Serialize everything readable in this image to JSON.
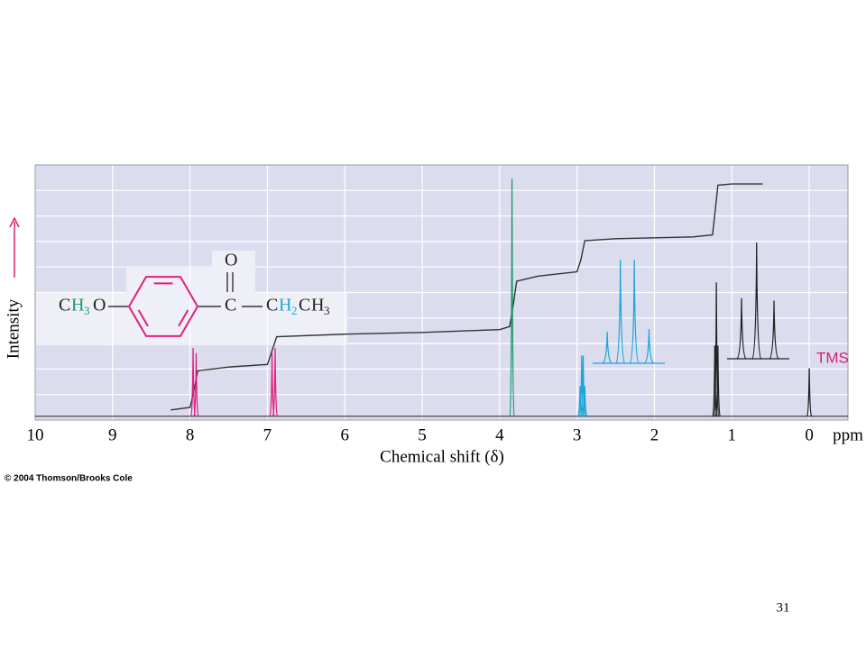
{
  "chart_data": {
    "type": "nmr",
    "x_label": "Chemical shift (δ)",
    "x_unit": "ppm",
    "y_label": "Intensity",
    "xlim": [
      10,
      -0.5
    ],
    "xticks": [
      10,
      9,
      8,
      7,
      6,
      5,
      4,
      3,
      2,
      1,
      0
    ],
    "ylim": [
      -1.5,
      99.5
    ],
    "grid": true,
    "background": "#dcdcef",
    "annotation": {
      "text": "TMS",
      "color": "#d6206f"
    },
    "series": [
      {
        "color": "#e0207f",
        "x": [
          7.96,
          7.92,
          6.94,
          6.9
        ],
        "values": [
          27,
          25,
          25,
          27
        ]
      },
      {
        "color": "#1a9a6a",
        "x": [
          3.84
        ],
        "values": [
          94
        ]
      },
      {
        "color": "#1aa6d8",
        "x": [
          2.96,
          2.94,
          2.92,
          2.9
        ],
        "values": [
          12,
          24,
          24,
          12
        ]
      },
      {
        "color": "#222222",
        "x": [
          1.22,
          1.2,
          1.18,
          0
        ],
        "values": [
          28,
          53,
          28,
          19
        ]
      }
    ],
    "insets": [
      {
        "color": "#1aa6d8",
        "x": [
          2.61,
          2.44,
          2.26,
          2.07
        ],
        "values": [
          12.4,
          41,
          41,
          13.5
        ]
      },
      {
        "color": "#222222",
        "x": [
          0.875,
          0.68,
          0.455
        ],
        "values": [
          24,
          46,
          23
        ]
      }
    ],
    "integral": {
      "color": "#333333",
      "x": [
        8.25,
        8.0,
        7.95,
        7.9,
        7.5,
        7.0,
        6.95,
        6.88,
        6.0,
        5.0,
        4.0,
        3.87,
        3.82,
        3.78,
        3.5,
        3.0,
        2.95,
        2.9,
        2.5,
        1.5,
        1.25,
        1.22,
        1.18,
        1.0,
        0.6
      ],
      "values": [
        2.5,
        3.5,
        10,
        18,
        19.5,
        20.5,
        25,
        31.5,
        32.5,
        33.2,
        34.3,
        35.5,
        45,
        53.5,
        55.5,
        57.2,
        62,
        69.5,
        70.3,
        71,
        71.8,
        80,
        91.5,
        92,
        92
      ]
    },
    "structure": {
      "ring_color": "#e0207f",
      "parts": [
        {
          "text": "C",
          "color": "#222222"
        },
        {
          "text": "H",
          "color": "#1a9a6a"
        },
        {
          "text": "3",
          "color": "#1a9a6a"
        },
        {
          "text": "O",
          "color": "#222222"
        },
        {
          "text": "O",
          "color": "#222222"
        },
        {
          "text": "C",
          "color": "#222222"
        },
        {
          "text": "C",
          "color": "#222222"
        },
        {
          "text": "H",
          "color": "#1aa6d8"
        },
        {
          "text": "2",
          "color": "#1aa6d8"
        },
        {
          "text": "C",
          "color": "#222222"
        },
        {
          "text": "H",
          "color": "#222222"
        },
        {
          "text": "3",
          "color": "#222222"
        }
      ]
    }
  },
  "footer": {
    "copyright": "© 2004 Thomson/Brooks Cole",
    "page_number": "31"
  }
}
